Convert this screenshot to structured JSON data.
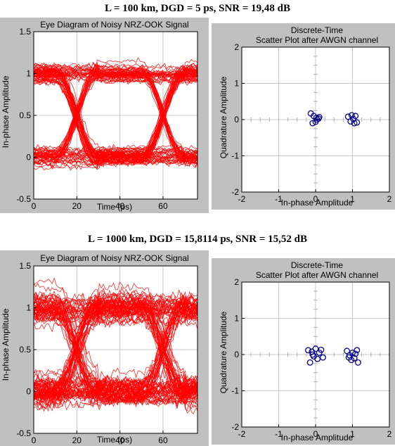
{
  "chart_data": [
    {
      "id": "eye1",
      "type": "line",
      "section_title": "L = 100 km, DGD = 5 ps, SNR = 19,48 dB",
      "title": "Eye Diagram of Noisy NRZ-OOK Signal",
      "xlabel": "Time (ps)",
      "ylabel": "In-phase Amplitude",
      "xlim": [
        0,
        76
      ],
      "ylim": [
        -0.5,
        1.5
      ],
      "xticks": [
        0,
        20,
        40,
        60
      ],
      "yticks": [
        -0.5,
        0,
        0.5,
        1,
        1.5
      ],
      "ytick_labels": [
        "-0.5",
        "0",
        "0.5",
        "1",
        "1.5"
      ],
      "bit_period_ps": 40,
      "levels": [
        0,
        1
      ],
      "trace_color": "#ff0000",
      "noise_std": 0.05,
      "num_traces": 110,
      "grid": true
    },
    {
      "id": "scatter1",
      "type": "scatter",
      "title_lines": [
        "Discrete-Time",
        "Scatter Plot after AWGN channel"
      ],
      "xlabel": "In-phase Amplitude",
      "ylabel": "Quadrature Amplitude",
      "xlim": [
        -2,
        2
      ],
      "ylim": [
        -2,
        2
      ],
      "xticks": [
        -2,
        -1,
        0,
        1,
        2
      ],
      "yticks": [
        -2,
        -1,
        0,
        1,
        2
      ],
      "marker_color": "#00008b",
      "grid": true,
      "points": [
        {
          "x": -0.13,
          "y": 0.17
        },
        {
          "x": -0.05,
          "y": 0.1
        },
        {
          "x": 0.02,
          "y": 0.05
        },
        {
          "x": 0.08,
          "y": 0.03
        },
        {
          "x": -0.08,
          "y": -0.1
        },
        {
          "x": 0.0,
          "y": -0.06
        },
        {
          "x": 0.04,
          "y": 0.0
        },
        {
          "x": 0.1,
          "y": 0.07
        },
        {
          "x": 0.88,
          "y": 0.08
        },
        {
          "x": 0.95,
          "y": -0.05
        },
        {
          "x": 1.02,
          "y": 0.02
        },
        {
          "x": 1.08,
          "y": 0.1
        },
        {
          "x": 1.12,
          "y": -0.08
        },
        {
          "x": 0.98,
          "y": 0.12
        },
        {
          "x": 1.05,
          "y": -0.1
        }
      ]
    },
    {
      "id": "eye2",
      "type": "line",
      "section_title": "L = 1000 km, DGD = 15,8114 ps, SNR = 15,52 dB",
      "title": "Eye Diagram of Noisy NRZ-OOK Signal",
      "xlabel": "Time (ps)",
      "ylabel": "In-phase Amplitude",
      "xlim": [
        0,
        76
      ],
      "ylim": [
        -0.5,
        1.5
      ],
      "xticks": [
        0,
        20,
        40,
        60
      ],
      "yticks": [
        -0.5,
        0,
        0.5,
        1,
        1.5
      ],
      "ytick_labels": [
        "-0.5",
        "0",
        "0.5",
        "1",
        "1.5"
      ],
      "bit_period_ps": 40,
      "levels": [
        0,
        1
      ],
      "trace_color": "#ff0000",
      "noise_std": 0.09,
      "num_traces": 120,
      "grid": true
    },
    {
      "id": "scatter2",
      "type": "scatter",
      "title_lines": [
        "Discrete-Time",
        "Scatter Plot after AWGN channel"
      ],
      "xlabel": "In-phase Amplitude",
      "ylabel": "Quadrature Amplitude",
      "xlim": [
        -2,
        2
      ],
      "ylim": [
        -2,
        2
      ],
      "xticks": [
        -2,
        -1,
        0,
        1,
        2
      ],
      "yticks": [
        -2,
        -1,
        0,
        1,
        2
      ],
      "marker_color": "#00008b",
      "grid": true,
      "points": [
        {
          "x": -0.2,
          "y": 0.12
        },
        {
          "x": -0.1,
          "y": 0.08
        },
        {
          "x": 0.0,
          "y": 0.16
        },
        {
          "x": 0.1,
          "y": 0.05
        },
        {
          "x": 0.15,
          "y": 0.13
        },
        {
          "x": -0.05,
          "y": -0.05
        },
        {
          "x": 0.05,
          "y": -0.12
        },
        {
          "x": -0.15,
          "y": -0.22
        },
        {
          "x": 0.2,
          "y": -0.08
        },
        {
          "x": -0.08,
          "y": 0.0
        },
        {
          "x": 0.85,
          "y": 0.1
        },
        {
          "x": 0.92,
          "y": -0.02
        },
        {
          "x": 1.0,
          "y": 0.05
        },
        {
          "x": 1.05,
          "y": -0.1
        },
        {
          "x": 1.12,
          "y": 0.12
        },
        {
          "x": 0.97,
          "y": -0.15
        },
        {
          "x": 1.15,
          "y": -0.22
        },
        {
          "x": 1.08,
          "y": 0.02
        },
        {
          "x": 0.9,
          "y": -0.08
        }
      ]
    }
  ]
}
